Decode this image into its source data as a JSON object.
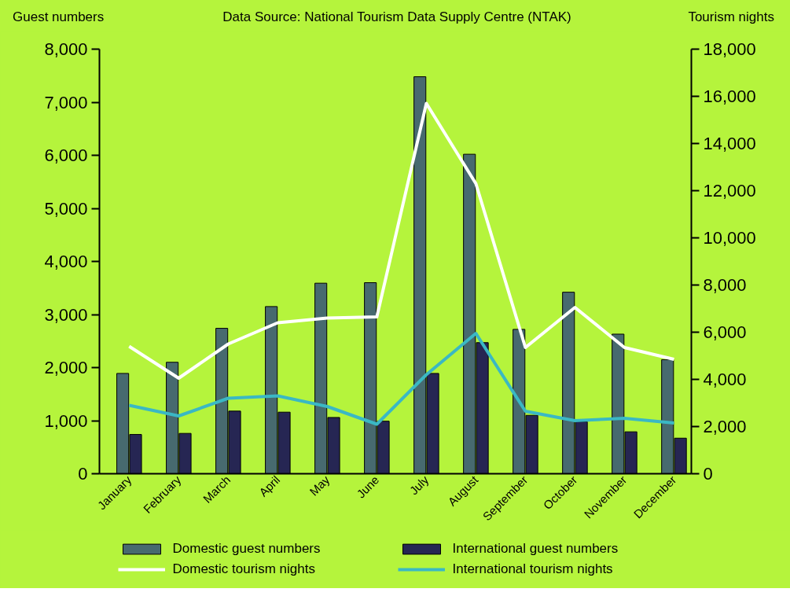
{
  "chart_data": {
    "type": "bar",
    "annotations": [
      "Data Source: National Tourism Data Supply Centre (NTAK)"
    ],
    "ylabel": "Guest numbers",
    "y2label": "Tourism nights",
    "categories": [
      "January",
      "February",
      "March",
      "April",
      "May",
      "June",
      "July",
      "August",
      "September",
      "October",
      "November",
      "December"
    ],
    "series": [
      {
        "name": "Domestic guest numbers",
        "color": "#476a6f",
        "values": [
          1890,
          2100,
          2740,
          3150,
          3590,
          3600,
          7480,
          6020,
          2720,
          3420,
          2630,
          2150
        ]
      },
      {
        "name": "International guest numbers",
        "color": "#262653",
        "values": [
          740,
          760,
          1180,
          1160,
          1060,
          990,
          1890,
          2470,
          1100,
          980,
          790,
          670
        ]
      },
      {
        "name": "Domestic tourism nights",
        "type": "line",
        "axis": "y2",
        "color": "#ffffff",
        "values": [
          5400,
          4050,
          5500,
          6400,
          6600,
          6650,
          15700,
          12300,
          5350,
          7050,
          5350,
          4850
        ]
      },
      {
        "name": "International tourism nights",
        "type": "line",
        "axis": "y2",
        "color": "#3ab8c4",
        "values": [
          2900,
          2450,
          3200,
          3300,
          2850,
          2100,
          4200,
          5950,
          2650,
          2250,
          2350,
          2150
        ]
      }
    ],
    "ylim": [
      0,
      8000
    ],
    "yticks": [
      0,
      {
        "value": 1000,
        "label": "1,000"
      },
      {
        "value": 2000,
        "label": "2,000"
      },
      {
        "value": 3000,
        "label": "3,000"
      },
      {
        "value": 4000,
        "label": "4,000"
      },
      {
        "value": 5000,
        "label": "5,000"
      },
      {
        "value": 6000,
        "label": "6,000"
      },
      {
        "value": 7000,
        "label": "7,000"
      },
      {
        "value": 8000,
        "label": "8,000"
      }
    ],
    "y2lim": [
      0,
      18000
    ],
    "y2ticks": [
      0,
      {
        "value": 2000,
        "label": "2,000"
      },
      {
        "value": 4000,
        "label": "4,000"
      },
      {
        "value": 6000,
        "label": "6,000"
      },
      {
        "value": 8000,
        "label": "8,000"
      },
      {
        "value": 10000,
        "label": "10,000"
      },
      {
        "value": 12000,
        "label": "12,000"
      },
      {
        "value": 14000,
        "label": "14,000"
      },
      {
        "value": 16000,
        "label": "16,000"
      },
      {
        "value": 18000,
        "label": "18,000"
      }
    ],
    "legend": "bottom",
    "grid": false
  }
}
